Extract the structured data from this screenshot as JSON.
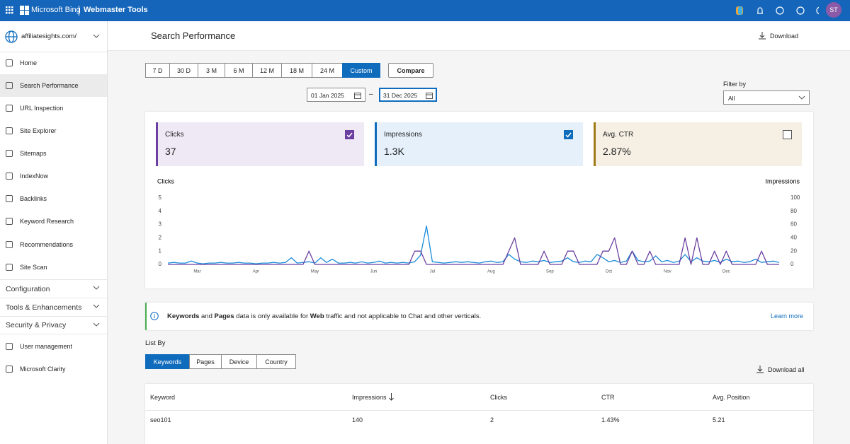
{
  "topbar": {
    "brand": "Microsoft Bing",
    "product": "Webmaster Tools",
    "avatar": "ST"
  },
  "sidebar": {
    "site": "affiliatesights.com/",
    "nav": [
      "Home",
      "Search Performance",
      "URL Inspection",
      "Site Explorer",
      "Sitemaps",
      "IndexNow",
      "Backlinks",
      "Keyword Research",
      "Recommendations",
      "Site Scan"
    ],
    "sections": [
      "Configuration",
      "Tools & Enhancements",
      "Security & Privacy"
    ],
    "nav_bottom": [
      "User management",
      "Microsoft Clarity"
    ]
  },
  "page": {
    "title": "Search Performance",
    "download": "Download",
    "ranges": [
      "7 D",
      "30 D",
      "3 M",
      "6 M",
      "12 M",
      "18 M",
      "24 M",
      "Custom"
    ],
    "compare": "Compare",
    "date_from": "01 Jan 2025",
    "date_sep": "–",
    "date_to": "31 Dec 2025",
    "filter_label": "Filter by",
    "filter_value": "All"
  },
  "metrics": [
    {
      "label": "Clicks",
      "value": "37"
    },
    {
      "label": "Impressions",
      "value": "1.3K"
    },
    {
      "label": "Avg. CTR",
      "value": "2.87%"
    }
  ],
  "chart_data": {
    "type": "line",
    "y_label": "Clicks",
    "y2_label": "Impressions",
    "categories": [
      null,
      null,
      null,
      null,
      null,
      "Mar",
      null,
      null,
      null,
      null,
      null,
      null,
      null,
      null,
      null,
      "Apr",
      null,
      null,
      null,
      null,
      null,
      null,
      null,
      null,
      null,
      "May",
      null,
      null,
      null,
      null,
      null,
      null,
      null,
      null,
      null,
      "Jun",
      null,
      null,
      null,
      null,
      null,
      null,
      null,
      null,
      null,
      "Jul",
      null,
      null,
      null,
      null,
      null,
      null,
      null,
      null,
      null,
      "Aug",
      null,
      null,
      null,
      null,
      null,
      null,
      null,
      null,
      null,
      "Sep",
      null,
      null,
      null,
      null,
      null,
      null,
      null,
      null,
      null,
      "Oct",
      null,
      null,
      null,
      null,
      null,
      null,
      null,
      null,
      null,
      "Nov",
      null,
      null,
      null,
      null,
      null,
      null,
      null,
      null,
      null,
      "Dec",
      null,
      null,
      null,
      null,
      null,
      null,
      null,
      null,
      null
    ],
    "series": [
      {
        "name": "Clicks",
        "color": "#6b3fa0",
        "values": [
          0,
          0,
          0,
          0,
          0,
          0,
          0,
          0,
          0,
          0,
          0,
          0,
          0,
          0,
          0,
          0,
          0,
          0,
          0,
          0,
          0,
          0,
          0,
          0,
          1,
          0,
          0,
          0,
          0,
          0,
          0,
          0,
          0,
          0,
          0,
          0,
          0,
          0,
          0,
          0,
          0,
          0,
          1,
          1,
          0,
          0,
          0,
          0,
          0,
          0,
          0,
          0,
          0,
          0,
          0,
          0,
          0,
          0,
          1,
          2,
          0,
          0,
          0,
          0,
          1,
          0,
          0,
          0,
          1,
          1,
          0,
          0,
          0,
          0,
          1,
          1,
          2,
          0,
          0,
          1,
          0,
          0,
          1,
          0,
          0,
          0,
          0,
          0,
          2,
          0,
          2,
          0,
          0,
          1,
          0,
          1,
          0,
          0,
          0,
          0,
          0,
          1,
          0,
          0,
          0
        ]
      },
      {
        "name": "Impressions",
        "color": "#1a8cd8",
        "axis": "y2",
        "values": [
          2,
          3,
          2,
          2,
          5,
          2,
          1,
          2,
          2,
          3,
          2,
          2,
          3,
          2,
          2,
          1,
          2,
          2,
          3,
          2,
          3,
          10,
          2,
          3,
          4,
          2,
          10,
          3,
          8,
          2,
          2,
          3,
          2,
          4,
          2,
          3,
          5,
          2,
          3,
          2,
          3,
          2,
          4,
          14,
          58,
          4,
          3,
          2,
          3,
          4,
          3,
          4,
          3,
          2,
          4,
          5,
          3,
          4,
          15,
          8,
          4,
          3,
          5,
          4,
          6,
          3,
          4,
          5,
          10,
          4,
          3,
          5,
          4,
          15,
          10,
          4,
          6,
          3,
          5,
          20,
          6,
          4,
          5,
          13,
          4,
          6,
          3,
          5,
          15,
          4,
          10,
          5,
          4,
          6,
          3,
          8,
          4,
          5,
          3,
          4,
          8,
          3,
          4,
          5,
          3
        ]
      }
    ],
    "ylim": [
      0,
      5
    ],
    "yticks": [
      0,
      1,
      2,
      3,
      4,
      5
    ],
    "y2lim": [
      0,
      100
    ],
    "y2ticks": [
      0,
      20,
      40,
      60,
      80,
      100
    ]
  },
  "banner": {
    "parts": [
      "Keywords",
      " and ",
      "Pages",
      " data is only available for ",
      "Web",
      " traffic and not applicable to Chat and other verticals."
    ],
    "link": "Learn more"
  },
  "list_by": {
    "label": "List By",
    "tabs": [
      "Keywords",
      "Pages",
      "Device",
      "Country"
    ],
    "download_all": "Download all"
  },
  "table": {
    "columns": [
      "Keyword",
      "Impressions",
      "Clicks",
      "CTR",
      "Avg. Position"
    ],
    "rows": [
      [
        "seo101",
        "140",
        "2",
        "1.43%",
        "5.21"
      ]
    ]
  }
}
